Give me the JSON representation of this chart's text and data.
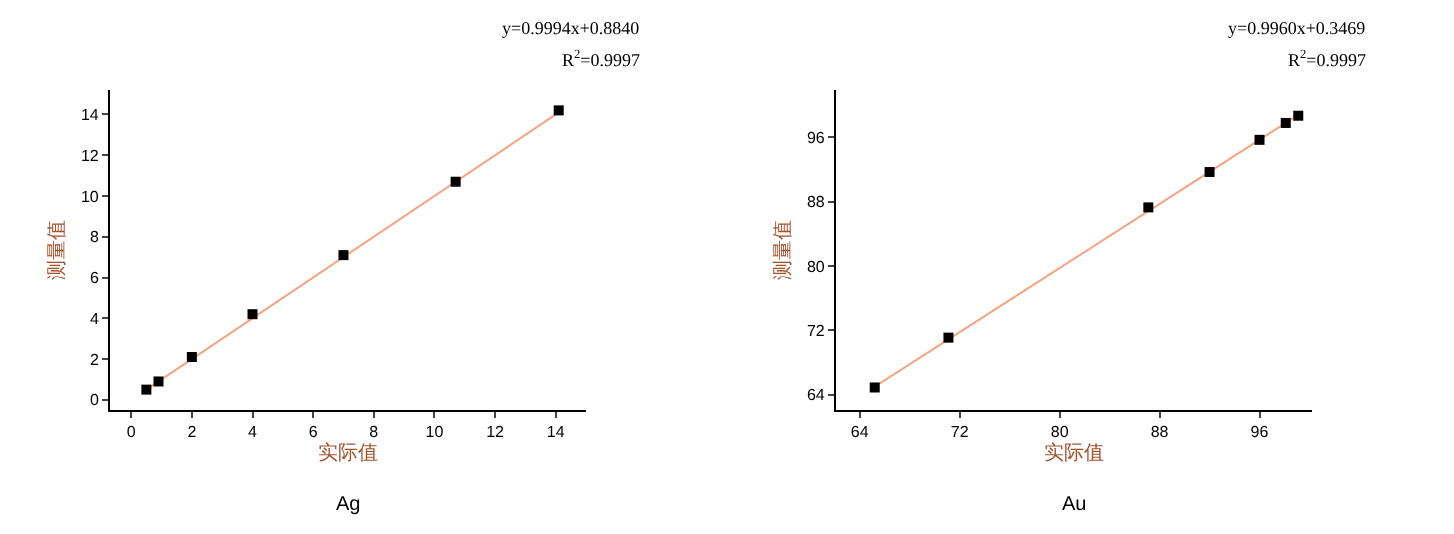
{
  "chart_data": [
    {
      "type": "scatter",
      "xlabel": "实际值",
      "ylabel": "测量值",
      "annotations": [
        "y=0.9994x+0.8840",
        "R$^{2}$=0.9997",
        "Ag"
      ],
      "xlim": [
        -0.7,
        15
      ],
      "xticks": [
        0,
        2,
        4,
        6,
        8,
        10,
        12,
        14
      ],
      "ylim": [
        -0.5,
        15.2
      ],
      "yticks": [
        0,
        2,
        4,
        6,
        8,
        10,
        12,
        14
      ],
      "grid": false,
      "marker": "square",
      "series": [
        {
          "type": "line",
          "color": "#f4a582",
          "x": [
            0.5,
            14.1
          ],
          "values": [
            0.5,
            14.1
          ],
          "marker": "none",
          "line_style": "solid"
        },
        {
          "type": "scatter",
          "color": "#000000",
          "x": [
            0.5,
            0.9,
            2,
            4,
            7,
            10.7,
            14.1
          ],
          "values": [
            0.5,
            0.9,
            2.1,
            4.2,
            7.1,
            10.7,
            14.2
          ]
        }
      ]
    },
    {
      "type": "scatter",
      "xlabel": "实际值",
      "ylabel": "测量值",
      "annotations": [
        "y=0.9960x+0.3469",
        "R$^{2}$=0.9997",
        "Au"
      ],
      "xlim": [
        62.1,
        100.2
      ],
      "xticks": [
        64,
        72,
        80,
        88,
        96
      ],
      "ylim": [
        62.1,
        101.9
      ],
      "yticks": [
        64,
        72,
        80,
        88,
        96
      ],
      "grid": false,
      "marker": "square",
      "series": [
        {
          "type": "line",
          "color": "#f4a582",
          "x": [
            65.2,
            99.1
          ],
          "values": [
            65.0,
            98.8
          ],
          "marker": "none",
          "line_style": "solid"
        },
        {
          "type": "scatter",
          "color": "#000000",
          "x": [
            65.2,
            71.1,
            87.1,
            92.0,
            96.0,
            98.1,
            99.1
          ],
          "values": [
            64.9,
            71.1,
            87.3,
            91.7,
            95.7,
            97.8,
            98.7
          ]
        }
      ]
    }
  ]
}
